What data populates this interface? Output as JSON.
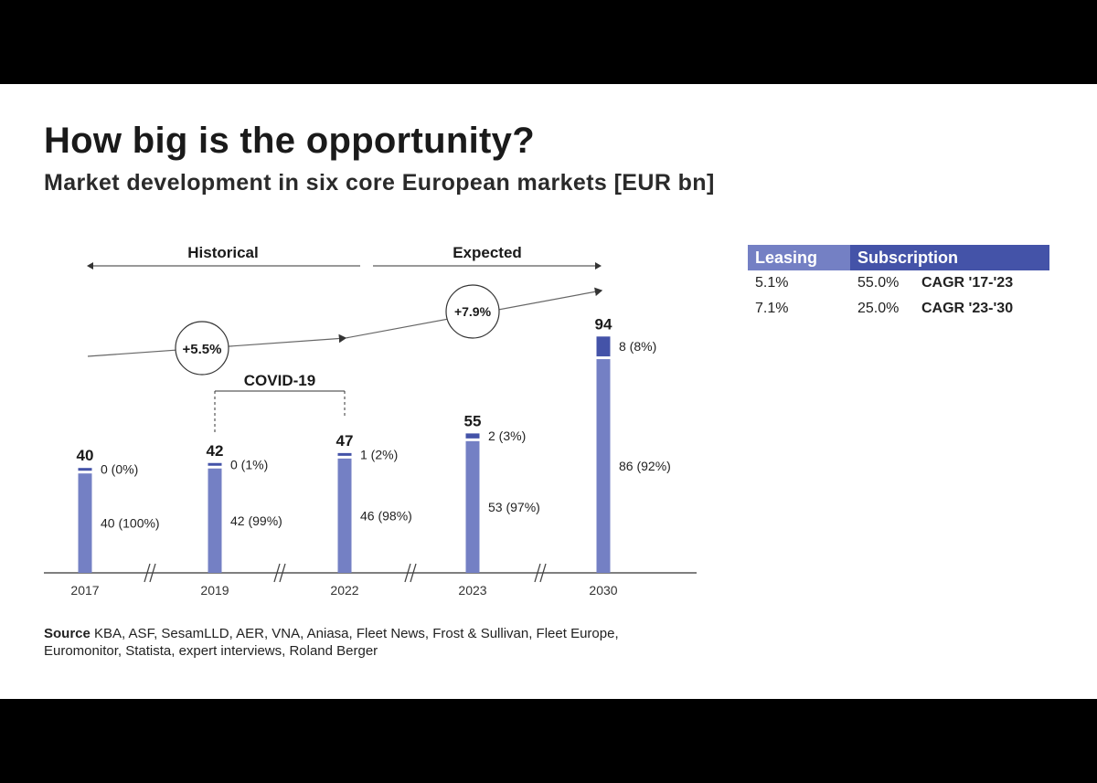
{
  "title": "How big is the opportunity?",
  "subtitle": "Market development in six core European markets [EUR bn]",
  "source_label": "Source",
  "source_text": "KBA, ASF, SesamLLD, AER, VNA, Aniasa, Fleet News, Frost & Sullivan, Fleet Europe, Euromonitor, Statista, expert interviews, Roland Berger",
  "legend": {
    "header_leasing": "Leasing",
    "header_subscription": "Subscription",
    "rows": [
      {
        "leasing": "5.1%",
        "subscription": "55.0%",
        "period": "CAGR '17-'23"
      },
      {
        "leasing": "7.1%",
        "subscription": "25.0%",
        "period": "CAGR '23-'30"
      }
    ]
  },
  "colors": {
    "leasing": "#7480c4",
    "subscription": "#4453a8",
    "text": "#1a1a1a",
    "axis": "#555555"
  },
  "chart_data": {
    "type": "bar",
    "stacked": true,
    "categories": [
      "2017",
      "2019",
      "2022",
      "2023",
      "2030"
    ],
    "totals": [
      "40",
      "42",
      "47",
      "55",
      "94"
    ],
    "series": [
      {
        "name": "Leasing",
        "values": [
          40,
          42,
          46,
          53,
          86
        ],
        "labels": [
          "40 (100%)",
          "42 (99%)",
          "46 (98%)",
          "53 (97%)",
          "86 (92%)"
        ]
      },
      {
        "name": "Subscription",
        "values": [
          0,
          0,
          1,
          2,
          8
        ],
        "labels": [
          "0 (0%)",
          "0 (1%)",
          "1 (2%)",
          "2 (3%)",
          "8 (8%)"
        ]
      }
    ],
    "phases": [
      "Historical",
      "Expected"
    ],
    "cagr": [
      "+5.5%",
      "+7.9%"
    ],
    "annotation": "COVID-19",
    "axis_break": true
  }
}
